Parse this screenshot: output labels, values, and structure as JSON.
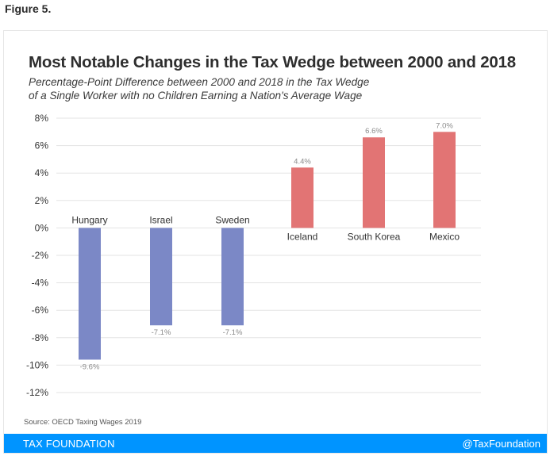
{
  "figure_label": "Figure 5.",
  "footer": {
    "brand": "TAX FOUNDATION",
    "handle": "@TaxFoundation",
    "color": "#0094ff"
  },
  "chart_data": {
    "type": "bar",
    "title": "Most Notable Changes in the Tax Wedge between 2000 and 2018",
    "subtitle_line1": "Percentage-Point Difference between 2000 and 2018 in the Tax Wedge",
    "subtitle_line2": "of a Single Worker with no Children Earning a Nation's Average Wage",
    "source": "Source: OECD Taxing Wages 2019",
    "xlabel": "",
    "ylabel": "",
    "ylim": [
      -12,
      8
    ],
    "yticks": [
      8,
      6,
      4,
      2,
      0,
      -2,
      -4,
      -6,
      -8,
      -10,
      -12
    ],
    "ytick_labels": [
      "8%",
      "6%",
      "4%",
      "2%",
      "0%",
      "-2%",
      "-4%",
      "-6%",
      "-8%",
      "-10%",
      "-12%"
    ],
    "grid": true,
    "categories": [
      "Hungary",
      "Israel",
      "Sweden",
      "Iceland",
      "South Korea",
      "Mexico"
    ],
    "values": [
      -9.6,
      -7.1,
      -7.1,
      4.4,
      6.6,
      7.0
    ],
    "value_labels": [
      "-9.6%",
      "-7.1%",
      "-7.1%",
      "4.4%",
      "6.6%",
      "7.0%"
    ],
    "colors": {
      "negative": "#7b88c6",
      "positive": "#e27474",
      "grid": "#e3e3e3",
      "tick_text": "#333333",
      "value_text": "#8a8a8a"
    }
  }
}
